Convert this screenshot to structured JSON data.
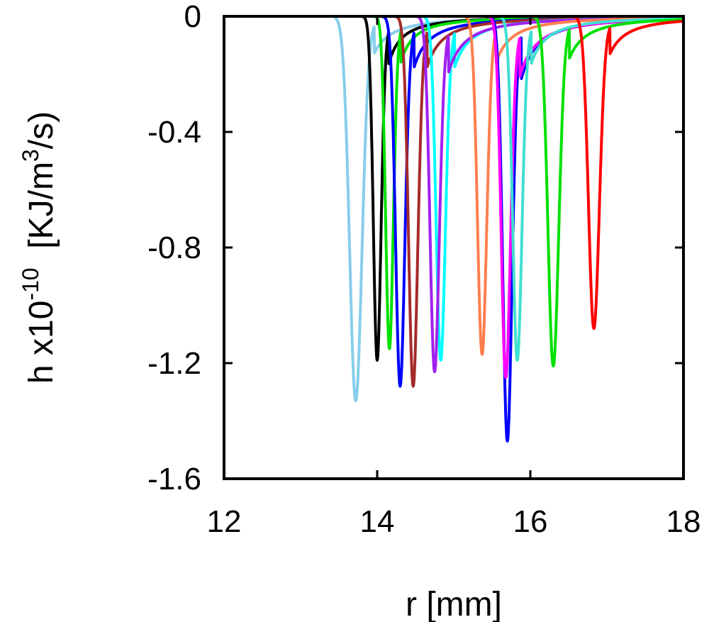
{
  "chart_data": {
    "type": "line",
    "title": "",
    "xlabel": "r [mm]",
    "ylabel": {
      "prefix": "h x10",
      "exp": "-10",
      "unit_open": "  [KJ/m",
      "unit_exp": "3",
      "unit_close": "/s)"
    },
    "xlim": [
      12,
      18
    ],
    "ylim": [
      -1.6,
      0
    ],
    "xticks": [
      "12",
      "14",
      "16",
      "18"
    ],
    "yticks": [
      "0",
      "-0.4",
      "-0.8",
      "-1.2",
      "-1.6"
    ],
    "grid": false,
    "legend": "none",
    "series": [
      {
        "color": "#87ceeb",
        "center": 13.72,
        "depth": 1.33,
        "width": 0.08,
        "tail": 0.11
      },
      {
        "color": "#000000",
        "center": 14.0,
        "depth": 1.19,
        "width": 0.05,
        "tail": 0.1
      },
      {
        "color": "#00e000",
        "center": 14.16,
        "depth": 1.15,
        "width": 0.05,
        "tail": 0.1
      },
      {
        "color": "#0000ff",
        "center": 14.3,
        "depth": 1.28,
        "width": 0.06,
        "tail": 0.12
      },
      {
        "color": "#a52a2a",
        "center": 14.47,
        "depth": 1.28,
        "width": 0.06,
        "tail": 0.12
      },
      {
        "color": "#00ffff",
        "center": 14.83,
        "depth": 1.19,
        "width": 0.06,
        "tail": 0.13
      },
      {
        "color": "#a020f0",
        "center": 14.75,
        "depth": 1.23,
        "width": 0.06,
        "tail": 0.14
      },
      {
        "color": "#ff7f50",
        "center": 15.37,
        "depth": 1.17,
        "width": 0.06,
        "tail": 0.12
      },
      {
        "color": "#0000ff",
        "center": 15.7,
        "depth": 1.47,
        "width": 0.06,
        "tail": 0.13
      },
      {
        "color": "#ff00ff",
        "center": 15.68,
        "depth": 1.25,
        "width": 0.06,
        "tail": 0.15
      },
      {
        "color": "#40e0d0",
        "center": 15.83,
        "depth": 1.19,
        "width": 0.06,
        "tail": 0.12
      },
      {
        "color": "#00e000",
        "center": 16.3,
        "depth": 1.21,
        "width": 0.07,
        "tail": 0.12
      },
      {
        "color": "#ff0000",
        "center": 16.83,
        "depth": 1.08,
        "width": 0.07,
        "tail": 0.12
      }
    ]
  }
}
